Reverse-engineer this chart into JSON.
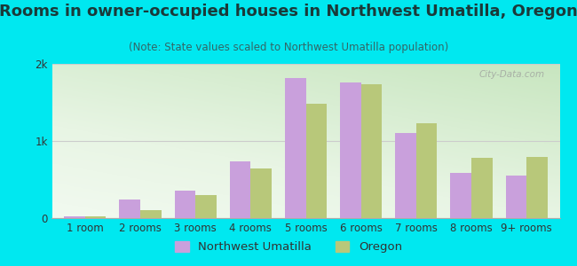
{
  "title": "Rooms in owner-occupied houses in Northwest Umatilla, Oregon",
  "subtitle": "(Note: State values scaled to Northwest Umatilla population)",
  "categories": [
    "1 room",
    "2 rooms",
    "3 rooms",
    "4 rooms",
    "5 rooms",
    "6 rooms",
    "7 rooms",
    "8 rooms",
    "9+ rooms"
  ],
  "nw_umatilla": [
    18,
    240,
    360,
    730,
    1820,
    1760,
    1100,
    590,
    550
  ],
  "oregon": [
    22,
    100,
    300,
    640,
    1480,
    1730,
    1230,
    780,
    790
  ],
  "nw_color": "#c9a0dc",
  "or_color": "#b8c87a",
  "background_color": "#00e8f0",
  "ylim": [
    0,
    2000
  ],
  "yticks": [
    0,
    1000,
    2000
  ],
  "ytick_labels": [
    "0",
    "1k",
    "2k"
  ],
  "title_fontsize": 13,
  "subtitle_fontsize": 8.5,
  "tick_fontsize": 8.5,
  "legend_fontsize": 9.5,
  "bar_width": 0.38,
  "watermark": "City-Data.com"
}
